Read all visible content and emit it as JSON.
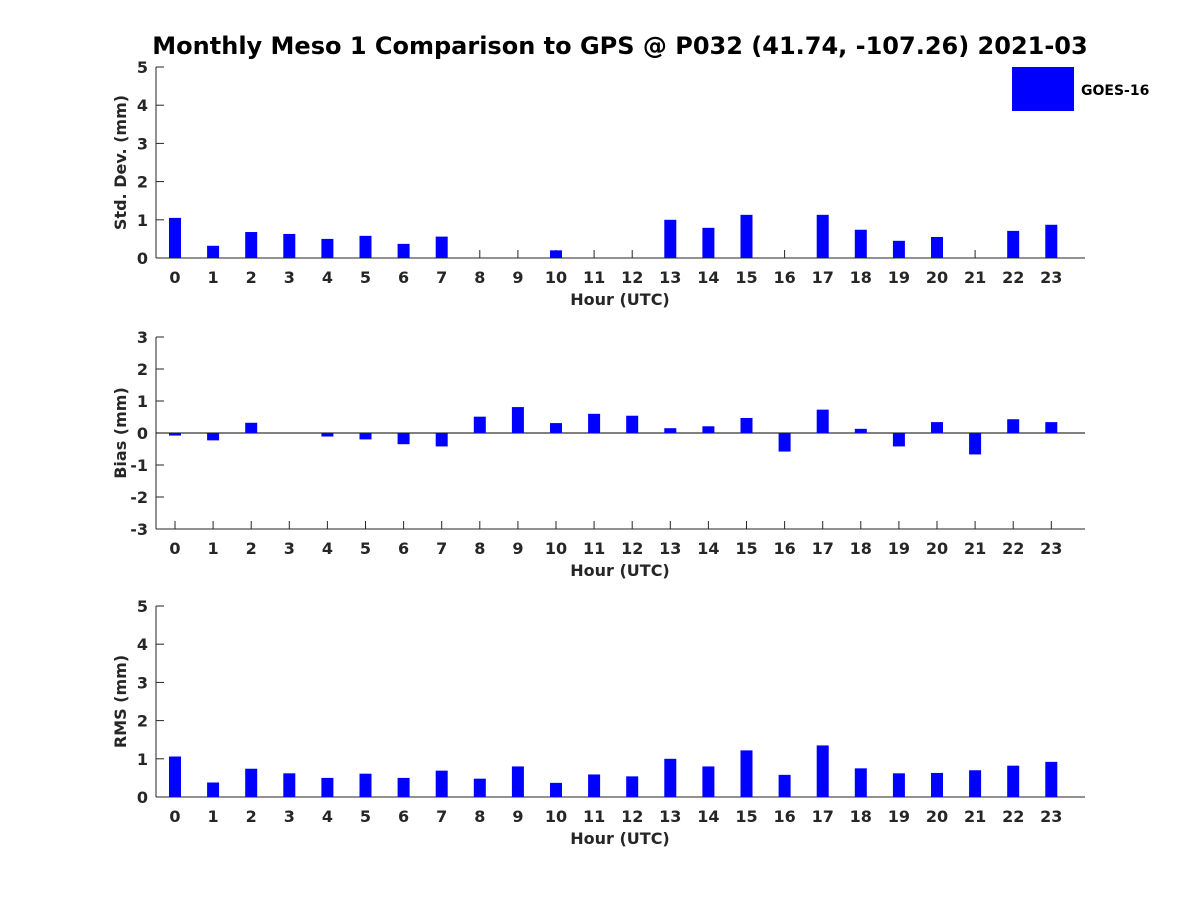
{
  "chart_data": {
    "type": "bar",
    "title": "Monthly Meso 1 Comparison to GPS @ P032 (41.74, -107.26) 2021-03",
    "legend": {
      "label": "GOES-16",
      "placement": "top-right",
      "color": "#0000ff"
    },
    "bar_color": "#0000ff",
    "categories": [
      "0",
      "1",
      "2",
      "3",
      "4",
      "5",
      "6",
      "7",
      "8",
      "9",
      "10",
      "11",
      "12",
      "13",
      "14",
      "15",
      "16",
      "17",
      "18",
      "19",
      "20",
      "21",
      "22",
      "23"
    ],
    "panels": [
      {
        "id": "std",
        "ylabel": "Std. Dev. (mm)",
        "xlabel": "Hour (UTC)",
        "ylim": [
          0,
          5
        ],
        "yticks": [
          "0",
          "1",
          "2",
          "3",
          "4",
          "5"
        ],
        "values": [
          1.05,
          0.32,
          0.68,
          0.63,
          0.5,
          0.58,
          0.37,
          0.56,
          0,
          0,
          0.2,
          0,
          0,
          1.0,
          0.79,
          1.13,
          0,
          1.13,
          0.74,
          0.45,
          0.55,
          0,
          0.71,
          0.87
        ]
      },
      {
        "id": "bias",
        "ylabel": "Bias (mm)",
        "xlabel": "Hour (UTC)",
        "ylim": [
          -3,
          3
        ],
        "yticks": [
          "-3",
          "-2",
          "-1",
          "0",
          "1",
          "2",
          "3"
        ],
        "values": [
          -0.08,
          -0.23,
          0.32,
          0,
          -0.11,
          -0.2,
          -0.35,
          -0.42,
          0.51,
          0.81,
          0.31,
          0.6,
          0.54,
          0.15,
          0.21,
          0.47,
          -0.58,
          0.73,
          0.13,
          -0.42,
          0.34,
          -0.67,
          0.43,
          0.34
        ]
      },
      {
        "id": "rms",
        "ylabel": "RMS (mm)",
        "xlabel": "Hour (UTC)",
        "ylim": [
          0,
          5
        ],
        "yticks": [
          "0",
          "1",
          "2",
          "3",
          "4",
          "5"
        ],
        "values": [
          1.06,
          0.38,
          0.74,
          0.62,
          0.5,
          0.61,
          0.5,
          0.69,
          0.48,
          0.8,
          0.37,
          0.59,
          0.54,
          1.0,
          0.8,
          1.22,
          0.58,
          1.35,
          0.75,
          0.62,
          0.63,
          0.7,
          0.82,
          0.92
        ]
      }
    ]
  }
}
